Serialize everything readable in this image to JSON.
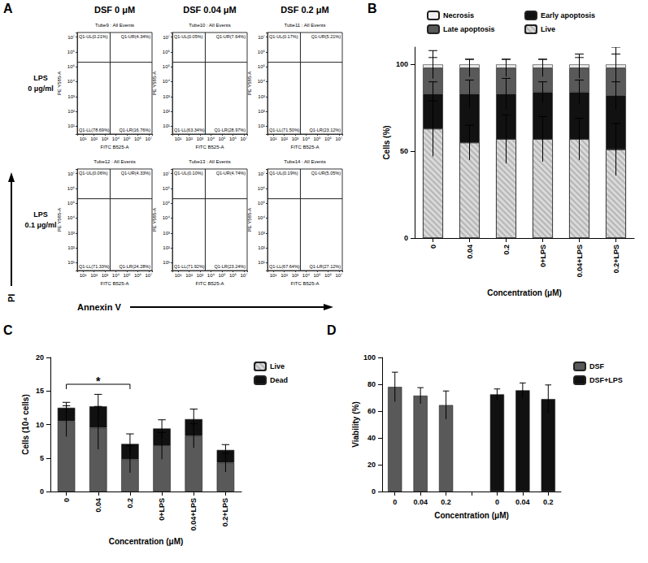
{
  "figure": {
    "panel": "A",
    "column_headers": [
      "DSF 0 μM",
      "DSF 0.04 μM",
      "DSF 0.2 μM"
    ],
    "row_headers": [
      [
        "LPS",
        "0 μg/ml"
      ],
      [
        "LPS",
        "0.1 μg/ml"
      ]
    ],
    "y_arrow_label": "PI",
    "x_arrow_label": "Annexin V"
  },
  "chart_data": [
    {
      "type": "quadrant",
      "title": "Tube9 : All Events",
      "x_label": "FITC B525-A",
      "y_label": "PE Y585-A",
      "log": true,
      "xlim": [
        3,
        20000000
      ],
      "ylim": [
        3,
        20000000
      ],
      "xticks": [
        {
          "value": 10,
          "label": "10¹"
        },
        {
          "value": 100,
          "label": "10²"
        },
        {
          "value": 1000,
          "label": "10³"
        },
        {
          "value": 10000,
          "label": "10⁴"
        },
        {
          "value": 100000,
          "label": "10⁵"
        },
        {
          "value": 1000000,
          "label": "10⁶"
        },
        {
          "value": 10000000,
          "label": "10⁷"
        }
      ],
      "yticks": [
        {
          "value": 10,
          "label": "10¹"
        },
        {
          "value": 100,
          "label": "10²"
        },
        {
          "value": 1000,
          "label": "10³"
        },
        {
          "value": 10000,
          "label": "10⁴"
        },
        {
          "value": 100000,
          "label": "10⁵"
        },
        {
          "value": 1000000,
          "label": "10⁶"
        },
        {
          "value": 10000000,
          "label": "10⁷"
        }
      ],
      "gate": {
        "x": 3000,
        "y": 200000
      },
      "quadrant_labels": {
        "UL": "Q1-UL(0.21%)",
        "UR": "Q1-UR(4.34%)",
        "LL": "Q1-LL(78.69%)",
        "LR": "Q1-LR(16.76%)"
      }
    },
    {
      "type": "quadrant",
      "title": "Tube10 : All Events",
      "x_label": "FITC B525-A",
      "y_label": "PE Y585-A",
      "log": true,
      "xlim": [
        3,
        20000000
      ],
      "ylim": [
        3,
        20000000
      ],
      "xticks": [
        {
          "value": 10,
          "label": "10¹"
        },
        {
          "value": 100,
          "label": "10²"
        },
        {
          "value": 1000,
          "label": "10³"
        },
        {
          "value": 10000,
          "label": "10⁴"
        },
        {
          "value": 100000,
          "label": "10⁵"
        },
        {
          "value": 1000000,
          "label": "10⁶"
        },
        {
          "value": 10000000,
          "label": "10⁷"
        }
      ],
      "yticks": [
        {
          "value": 10,
          "label": "10¹"
        },
        {
          "value": 100,
          "label": "10²"
        },
        {
          "value": 1000,
          "label": "10³"
        },
        {
          "value": 10000,
          "label": "10⁴"
        },
        {
          "value": 100000,
          "label": "10⁵"
        },
        {
          "value": 1000000,
          "label": "10⁶"
        },
        {
          "value": 10000000,
          "label": "10⁷"
        }
      ],
      "gate": {
        "x": 3000,
        "y": 200000
      },
      "quadrant_labels": {
        "UL": "Q1-UL(0.05%)",
        "UR": "Q1-UR(7.64%)",
        "LL": "Q1-LL(63.34%)",
        "LR": "Q1-LR(28.97%)"
      }
    },
    {
      "type": "quadrant",
      "title": "Tube11 : All Events",
      "x_label": "FITC B525-A",
      "y_label": "PE Y585-A",
      "log": true,
      "xlim": [
        3,
        20000000
      ],
      "ylim": [
        3,
        20000000
      ],
      "xticks": [
        {
          "value": 10,
          "label": "10¹"
        },
        {
          "value": 100,
          "label": "10²"
        },
        {
          "value": 1000,
          "label": "10³"
        },
        {
          "value": 10000,
          "label": "10⁴"
        },
        {
          "value": 100000,
          "label": "10⁵"
        },
        {
          "value": 1000000,
          "label": "10⁶"
        },
        {
          "value": 10000000,
          "label": "10⁷"
        }
      ],
      "yticks": [
        {
          "value": 10,
          "label": "10¹"
        },
        {
          "value": 100,
          "label": "10²"
        },
        {
          "value": 1000,
          "label": "10³"
        },
        {
          "value": 10000,
          "label": "10⁴"
        },
        {
          "value": 100000,
          "label": "10⁵"
        },
        {
          "value": 1000000,
          "label": "10⁶"
        },
        {
          "value": 10000000,
          "label": "10⁷"
        }
      ],
      "gate": {
        "x": 3000,
        "y": 200000
      },
      "quadrant_labels": {
        "UL": "Q1-UL(0.17%)",
        "UR": "Q1-UR(5.21%)",
        "LL": "Q1-LL(71.50%)",
        "LR": "Q1-LR(23.12%)"
      }
    },
    {
      "type": "quadrant",
      "title": "Tube12 : All Events",
      "x_label": "FITC B525-A",
      "y_label": "PE Y585-A",
      "log": true,
      "xlim": [
        3,
        20000000
      ],
      "ylim": [
        3,
        20000000
      ],
      "xticks": [
        {
          "value": 10,
          "label": "10¹"
        },
        {
          "value": 100,
          "label": "10²"
        },
        {
          "value": 1000,
          "label": "10³"
        },
        {
          "value": 10000,
          "label": "10⁴"
        },
        {
          "value": 100000,
          "label": "10⁵"
        },
        {
          "value": 1000000,
          "label": "10⁶"
        },
        {
          "value": 10000000,
          "label": "10⁷"
        }
      ],
      "yticks": [
        {
          "value": 10,
          "label": "10¹"
        },
        {
          "value": 100,
          "label": "10²"
        },
        {
          "value": 1000,
          "label": "10³"
        },
        {
          "value": 10000,
          "label": "10⁴"
        },
        {
          "value": 100000,
          "label": "10⁵"
        },
        {
          "value": 1000000,
          "label": "10⁶"
        },
        {
          "value": 10000000,
          "label": "10⁷"
        }
      ],
      "gate": {
        "x": 3000,
        "y": 200000
      },
      "quadrant_labels": {
        "UL": "Q1-UL(0.06%)",
        "UR": "Q1-UR(4.33%)",
        "LL": "Q1-LL(71.33%)",
        "LR": "Q1-LR(24.28%)"
      }
    },
    {
      "type": "quadrant",
      "title": "Tube13 : All Events",
      "x_label": "FITC B525-A",
      "y_label": "PE Y585-A",
      "log": true,
      "xlim": [
        3,
        20000000
      ],
      "ylim": [
        3,
        20000000
      ],
      "xticks": [
        {
          "value": 10,
          "label": "10¹"
        },
        {
          "value": 100,
          "label": "10²"
        },
        {
          "value": 1000,
          "label": "10³"
        },
        {
          "value": 10000,
          "label": "10⁴"
        },
        {
          "value": 100000,
          "label": "10⁵"
        },
        {
          "value": 1000000,
          "label": "10⁶"
        },
        {
          "value": 10000000,
          "label": "10⁷"
        }
      ],
      "yticks": [
        {
          "value": 10,
          "label": "10¹"
        },
        {
          "value": 100,
          "label": "10²"
        },
        {
          "value": 1000,
          "label": "10³"
        },
        {
          "value": 10000,
          "label": "10⁴"
        },
        {
          "value": 100000,
          "label": "10⁵"
        },
        {
          "value": 1000000,
          "label": "10⁶"
        },
        {
          "value": 10000000,
          "label": "10⁷"
        }
      ],
      "gate": {
        "x": 3000,
        "y": 200000
      },
      "quadrant_labels": {
        "UL": "Q1-UL(0.10%)",
        "UR": "Q1-UR(4.74%)",
        "LL": "Q1-LL(71.92%)",
        "LR": "Q1-LR(23.24%)"
      }
    },
    {
      "type": "quadrant",
      "title": "Tube14 : All Events",
      "x_label": "FITC B525-A",
      "y_label": "PE Y585-A",
      "log": true,
      "xlim": [
        3,
        20000000
      ],
      "ylim": [
        3,
        20000000
      ],
      "xticks": [
        {
          "value": 10,
          "label": "10¹"
        },
        {
          "value": 100,
          "label": "10²"
        },
        {
          "value": 1000,
          "label": "10³"
        },
        {
          "value": 10000,
          "label": "10⁴"
        },
        {
          "value": 100000,
          "label": "10⁵"
        },
        {
          "value": 1000000,
          "label": "10⁶"
        },
        {
          "value": 10000000,
          "label": "10⁷"
        }
      ],
      "yticks": [
        {
          "value": 10,
          "label": "10¹"
        },
        {
          "value": 100,
          "label": "10²"
        },
        {
          "value": 1000,
          "label": "10³"
        },
        {
          "value": 10000,
          "label": "10⁴"
        },
        {
          "value": 100000,
          "label": "10⁵"
        },
        {
          "value": 1000000,
          "label": "10⁶"
        },
        {
          "value": 10000000,
          "label": "10⁷"
        }
      ],
      "gate": {
        "x": 3000,
        "y": 200000
      },
      "quadrant_labels": {
        "UL": "Q1-UL(0.19%)",
        "UR": "Q1-UR(5.05%)",
        "LL": "Q1-LL(67.64%)",
        "LR": "Q1-LR(27.12%)"
      }
    },
    {
      "type": "bar",
      "panel": "B",
      "stacked": true,
      "legend": "top",
      "categories": [
        "0",
        "0.04",
        "0.2",
        "0+LPS",
        "0.04+LPS",
        "0.2+LPS"
      ],
      "x_label": "Concentration (μM)",
      "y_label": "Cells (%)",
      "ylim": [
        0,
        110
      ],
      "yticks": [
        0,
        50,
        100
      ],
      "series": [
        {
          "name": "Live",
          "color": "#d9d9d9",
          "marker": "hatch",
          "values": [
            63,
            55,
            57,
            57,
            57,
            51
          ],
          "errors": [
            16,
            10,
            14,
            13,
            12,
            15
          ]
        },
        {
          "name": "Early apoptosis",
          "color": "#111111",
          "values": [
            20,
            28,
            26,
            27,
            27,
            31
          ],
          "errors": [
            7,
            8,
            9,
            6,
            7,
            8
          ]
        },
        {
          "name": "Late apoptosis",
          "color": "#595959",
          "values": [
            15,
            15,
            15,
            14,
            14,
            16
          ],
          "errors": [
            6,
            5,
            5,
            5,
            6,
            8
          ]
        },
        {
          "name": "Necrosis",
          "color": "#f0f0f0",
          "values": [
            2,
            2,
            2,
            2,
            2,
            2
          ],
          "errors": [
            8,
            3,
            3,
            3,
            6,
            10
          ]
        }
      ]
    },
    {
      "type": "bar",
      "panel": "C",
      "stacked": true,
      "legend": "top-right",
      "categories": [
        "0",
        "0.04",
        "0.2",
        "0+LPS",
        "0.04+LPS",
        "0.2+LPS"
      ],
      "x_label": "Concentration (μM)",
      "y_label": "Cells (10⁴ cells)",
      "ylim": [
        0,
        20
      ],
      "yticks": [
        0,
        5,
        10,
        15,
        20
      ],
      "series": [
        {
          "name": "Live",
          "color": "#595959",
          "values": [
            10.5,
            9.5,
            4.8,
            6.8,
            8.3,
            4.3
          ],
          "errors": [
            2.3,
            3.2,
            2.0,
            2.0,
            1.8,
            1.4
          ]
        },
        {
          "name": "Dead",
          "color": "#111111",
          "values": [
            2.0,
            3.2,
            2.3,
            2.6,
            2.5,
            1.9
          ],
          "errors": [
            0.8,
            1.8,
            1.5,
            1.3,
            1.5,
            0.8
          ]
        }
      ],
      "annotations": [
        {
          "text": "*",
          "from": "0",
          "to": "0.2",
          "y": 16
        }
      ]
    },
    {
      "type": "bar",
      "panel": "D",
      "legend": "top-right",
      "categories": [
        "0",
        "0.04",
        "0.2",
        null,
        "0",
        "0.04",
        "0.2"
      ],
      "x_label": "Concentration (μM)",
      "y_label": "Viability (%)",
      "ylim": [
        0,
        100
      ],
      "yticks": [
        0,
        20,
        40,
        60,
        80,
        100
      ],
      "series": [
        {
          "name": "DSF",
          "color": "#595959",
          "values": [
            78,
            71.5,
            64.5,
            null,
            null,
            null,
            null
          ],
          "errors": [
            11,
            6,
            10.5,
            null,
            null,
            null,
            null
          ]
        },
        {
          "name": "DSF+LPS",
          "color": "#111111",
          "values": [
            null,
            null,
            null,
            null,
            72.5,
            75.5,
            69
          ],
          "errors": [
            null,
            null,
            null,
            null,
            4,
            5.5,
            10.5
          ]
        }
      ]
    }
  ]
}
